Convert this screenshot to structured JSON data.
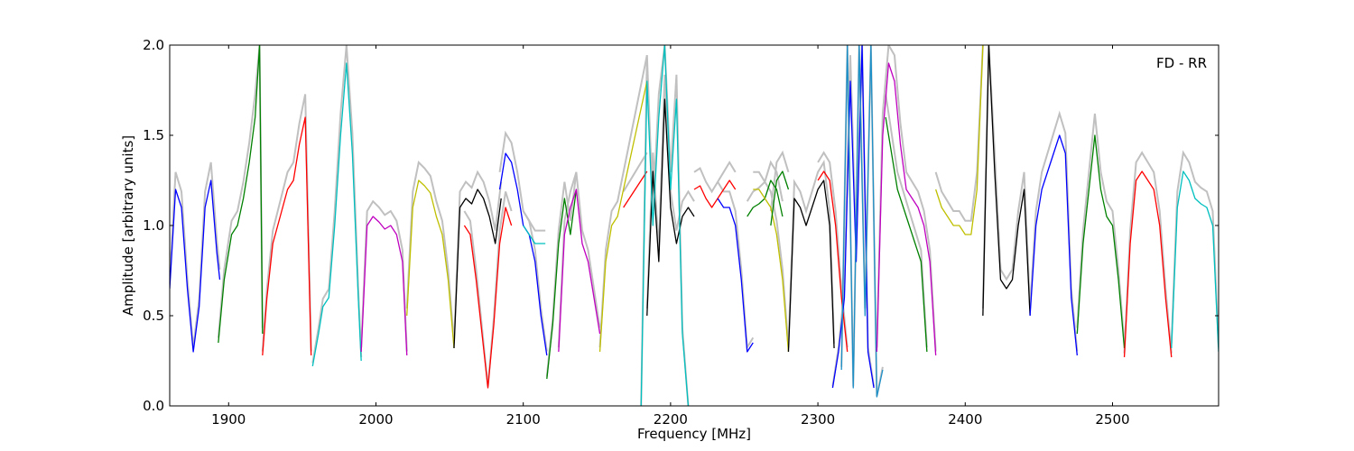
{
  "chart_data": {
    "type": "line",
    "xlabel": "Frequency [MHz]",
    "ylabel": "Amplitude [arbitrary units]",
    "annotation": "FD - RR",
    "annotation_position": "top-right",
    "xlim": [
      1860,
      2572
    ],
    "ylim": [
      0,
      2.0
    ],
    "x_ticks": [
      1900,
      2000,
      2100,
      2200,
      2300,
      2400,
      2500
    ],
    "y_ticks": [
      0.0,
      0.5,
      1.0,
      1.5,
      2.0
    ],
    "x_tick_labels": [
      "1900",
      "2000",
      "2100",
      "2200",
      "2300",
      "2400",
      "2500"
    ],
    "y_tick_labels": [
      "0.0",
      "0.5",
      "1.0",
      "1.5",
      "2.0"
    ],
    "grid": false,
    "background_color": "#c0c0c0",
    "bands": [
      {
        "color": "#0000ff",
        "x": [
          1860,
          1864,
          1868,
          1872,
          1876,
          1880,
          1884,
          1888,
          1892,
          1894
        ],
        "y": [
          0.65,
          1.2,
          1.1,
          0.65,
          0.3,
          0.55,
          1.1,
          1.25,
          0.85,
          0.7
        ]
      },
      {
        "color": "#008000",
        "x": [
          1893,
          1897,
          1902,
          1906,
          1910,
          1914,
          1918,
          1921,
          1923
        ],
        "y": [
          0.35,
          0.7,
          0.95,
          1.0,
          1.15,
          1.35,
          1.6,
          2.0,
          0.4
        ]
      },
      {
        "color": "#ff0000",
        "x": [
          1923,
          1926,
          1930,
          1935,
          1940,
          1944,
          1948,
          1952,
          1956
        ],
        "y": [
          0.28,
          0.6,
          0.9,
          1.05,
          1.2,
          1.25,
          1.45,
          1.6,
          0.28
        ]
      },
      {
        "color": "#00bfbf",
        "x": [
          1957,
          1961,
          1964,
          1968,
          1972,
          1976,
          1980,
          1984,
          1988,
          1990
        ],
        "y": [
          0.22,
          0.4,
          0.55,
          0.6,
          1.0,
          1.5,
          1.9,
          1.4,
          0.6,
          0.25
        ]
      },
      {
        "color": "#bf00bf",
        "x": [
          1990,
          1994,
          1998,
          2002,
          2006,
          2010,
          2014,
          2018,
          2021
        ],
        "y": [
          0.3,
          1.0,
          1.05,
          1.02,
          0.98,
          1.0,
          0.95,
          0.8,
          0.28
        ]
      },
      {
        "color": "#bfbf00",
        "x": [
          2021,
          2025,
          2029,
          2033,
          2037,
          2041,
          2045,
          2049,
          2053
        ],
        "y": [
          0.5,
          1.1,
          1.25,
          1.22,
          1.18,
          1.05,
          0.95,
          0.7,
          0.32
        ]
      },
      {
        "color": "#000000",
        "x": [
          2053,
          2057,
          2061,
          2065,
          2069,
          2073,
          2077,
          2081,
          2085
        ],
        "y": [
          0.32,
          1.1,
          1.15,
          1.12,
          1.2,
          1.15,
          1.05,
          0.9,
          1.15
        ]
      },
      {
        "color": "#ff0000",
        "x": [
          2060,
          2064,
          2068,
          2072,
          2076,
          2080,
          2084,
          2088,
          2092
        ],
        "y": [
          1.0,
          0.95,
          0.7,
          0.4,
          0.1,
          0.45,
          0.9,
          1.1,
          1.0
        ]
      },
      {
        "color": "#0000ff",
        "x": [
          2084,
          2088,
          2092,
          2096,
          2100,
          2104,
          2108,
          2112,
          2116
        ],
        "y": [
          1.2,
          1.4,
          1.35,
          1.2,
          1.0,
          0.95,
          0.8,
          0.5,
          0.28
        ]
      },
      {
        "color": "#00bfbf",
        "x": [
          2100,
          2104,
          2108,
          2112,
          2115
        ],
        "y": [
          1.0,
          0.95,
          0.9,
          0.9,
          0.9
        ]
      },
      {
        "color": "#008000",
        "x": [
          2116,
          2120,
          2124,
          2128,
          2132,
          2136
        ],
        "y": [
          0.15,
          0.45,
          0.9,
          1.15,
          0.95,
          1.2
        ]
      },
      {
        "color": "#bf00bf",
        "x": [
          2124,
          2128,
          2132,
          2136,
          2140,
          2144,
          2148,
          2152
        ],
        "y": [
          0.3,
          0.95,
          1.1,
          1.2,
          0.9,
          0.8,
          0.6,
          0.4
        ]
      },
      {
        "color": "#bfbf00",
        "x": [
          2152,
          2156,
          2160,
          2164,
          2168,
          2172,
          2176,
          2180,
          2184
        ],
        "y": [
          0.3,
          0.8,
          1.0,
          1.05,
          1.2,
          1.35,
          1.5,
          1.65,
          1.8
        ]
      },
      {
        "color": "#ff0000",
        "x": [
          2168,
          2172,
          2176,
          2180,
          2184
        ],
        "y": [
          1.1,
          1.15,
          1.2,
          1.25,
          1.3
        ]
      },
      {
        "color": "#000000",
        "x": [
          2184,
          2188,
          2192,
          2196,
          2200,
          2204,
          2208,
          2212,
          2216
        ],
        "y": [
          0.5,
          1.3,
          0.8,
          1.7,
          1.1,
          0.9,
          1.05,
          1.1,
          1.05
        ]
      },
      {
        "color": "#00bfbf",
        "x": [
          2180,
          2184,
          2188,
          2192,
          2196,
          2200,
          2204,
          2208,
          2212
        ],
        "y": [
          0.0,
          1.8,
          1.0,
          1.6,
          2.0,
          1.2,
          1.7,
          0.4,
          0.0
        ]
      },
      {
        "color": "#ff0000",
        "x": [
          2216,
          2220,
          2224,
          2228,
          2232,
          2236,
          2240,
          2244
        ],
        "y": [
          1.2,
          1.22,
          1.15,
          1.1,
          1.15,
          1.2,
          1.25,
          1.2
        ]
      },
      {
        "color": "#0000ff",
        "x": [
          2232,
          2236,
          2240,
          2244,
          2248,
          2252,
          2256
        ],
        "y": [
          1.15,
          1.1,
          1.1,
          1.0,
          0.7,
          0.3,
          0.35
        ]
      },
      {
        "color": "#008000",
        "x": [
          2252,
          2256,
          2260,
          2264,
          2268,
          2272,
          2276
        ],
        "y": [
          1.05,
          1.1,
          1.12,
          1.15,
          1.25,
          1.2,
          1.05
        ]
      },
      {
        "color": "#bfbf00",
        "x": [
          2256,
          2260,
          2264,
          2268,
          2272,
          2276,
          2280
        ],
        "y": [
          1.2,
          1.2,
          1.15,
          1.1,
          0.95,
          0.7,
          0.3
        ]
      },
      {
        "color": "#008000",
        "x": [
          2268,
          2272,
          2276,
          2280
        ],
        "y": [
          1.0,
          1.25,
          1.3,
          1.2
        ]
      },
      {
        "color": "#000000",
        "x": [
          2280,
          2284,
          2288,
          2292,
          2296,
          2300,
          2304,
          2308,
          2311
        ],
        "y": [
          0.3,
          1.15,
          1.1,
          1.0,
          1.1,
          1.2,
          1.25,
          1.0,
          0.32
        ]
      },
      {
        "color": "#ff0000",
        "x": [
          2300,
          2304,
          2308,
          2312,
          2316,
          2320
        ],
        "y": [
          1.25,
          1.3,
          1.25,
          1.0,
          0.6,
          0.3
        ]
      },
      {
        "color": "#0000ff",
        "x": [
          2310,
          2314,
          2318,
          2322,
          2326,
          2330,
          2334,
          2338
        ],
        "y": [
          0.1,
          0.3,
          0.6,
          1.8,
          0.8,
          2.0,
          0.3,
          0.1
        ]
      },
      {
        "color": "#1e90c8",
        "x": [
          2316,
          2320,
          2324,
          2328,
          2332,
          2336,
          2340,
          2344
        ],
        "y": [
          0.2,
          2.0,
          0.1,
          2.0,
          0.5,
          2.0,
          0.05,
          0.2
        ]
      },
      {
        "color": "#bf00bf",
        "x": [
          2340,
          2344,
          2348,
          2352,
          2356,
          2360,
          2364,
          2368,
          2372,
          2376,
          2380
        ],
        "y": [
          0.3,
          1.5,
          1.9,
          1.8,
          1.45,
          1.2,
          1.15,
          1.1,
          1.0,
          0.8,
          0.28
        ]
      },
      {
        "color": "#008000",
        "x": [
          2346,
          2350,
          2354,
          2358,
          2362,
          2366,
          2370,
          2374
        ],
        "y": [
          1.6,
          1.4,
          1.2,
          1.1,
          1.0,
          0.9,
          0.8,
          0.3
        ]
      },
      {
        "color": "#bfbf00",
        "x": [
          2380,
          2384,
          2388,
          2392,
          2396,
          2400,
          2404,
          2408,
          2412
        ],
        "y": [
          1.2,
          1.1,
          1.05,
          1.0,
          1.0,
          0.95,
          0.95,
          1.2,
          2.0
        ]
      },
      {
        "color": "#000000",
        "x": [
          2412,
          2416,
          2420,
          2424,
          2428,
          2432,
          2436,
          2440,
          2444
        ],
        "y": [
          0.5,
          2.0,
          1.3,
          0.7,
          0.65,
          0.7,
          1.0,
          1.2,
          0.5
        ]
      },
      {
        "color": "#0000ff",
        "x": [
          2444,
          2448,
          2452,
          2456,
          2460,
          2464,
          2468,
          2472,
          2476
        ],
        "y": [
          0.5,
          1.0,
          1.2,
          1.3,
          1.4,
          1.5,
          1.4,
          0.6,
          0.28
        ]
      },
      {
        "color": "#008000",
        "x": [
          2476,
          2480,
          2484,
          2488,
          2492,
          2496,
          2500,
          2504,
          2508
        ],
        "y": [
          0.4,
          0.9,
          1.2,
          1.5,
          1.2,
          1.05,
          1.0,
          0.7,
          0.32
        ]
      },
      {
        "color": "#ff0000",
        "x": [
          2508,
          2512,
          2516,
          2520,
          2524,
          2528,
          2532,
          2536,
          2540
        ],
        "y": [
          0.27,
          0.9,
          1.25,
          1.3,
          1.25,
          1.2,
          1.0,
          0.6,
          0.27
        ]
      },
      {
        "color": "#00bfbf",
        "x": [
          2540,
          2544,
          2548,
          2552,
          2556,
          2560,
          2564,
          2568,
          2572
        ],
        "y": [
          0.32,
          1.1,
          1.3,
          1.25,
          1.15,
          1.12,
          1.1,
          1.0,
          0.3
        ]
      }
    ]
  }
}
